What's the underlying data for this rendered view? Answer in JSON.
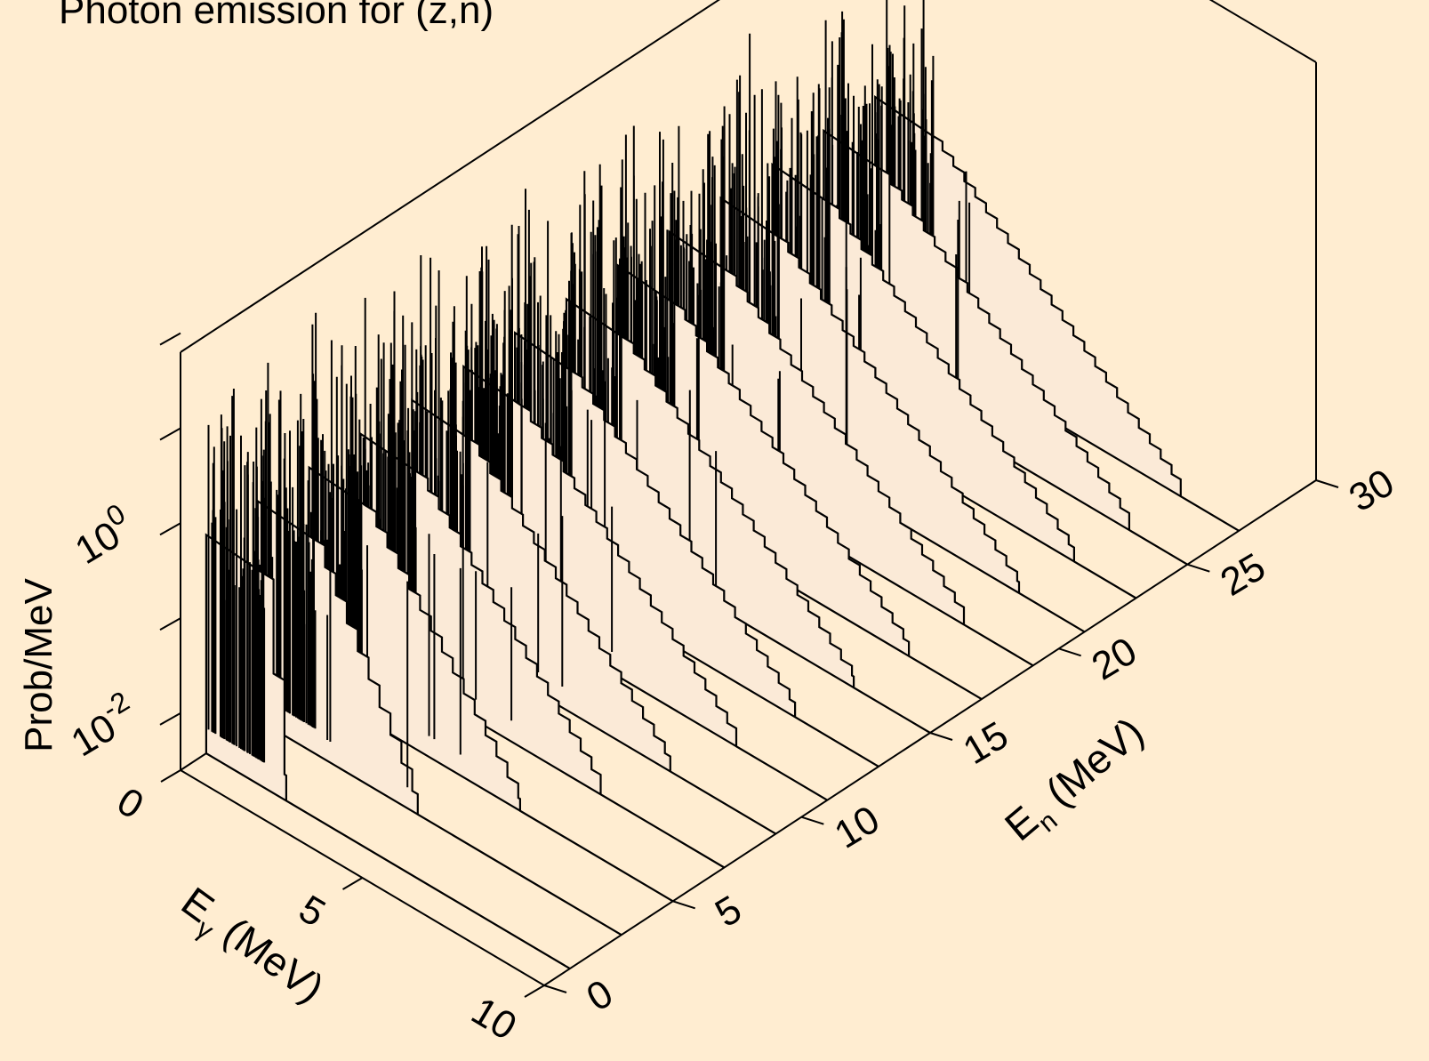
{
  "chart_data": {
    "type": "area",
    "title": "Photon emission for (z,n)",
    "xlabel_main": "E",
    "xlabel_sub": "γ",
    "xlabel_unit": " (MeV)",
    "ylabel_main": "E",
    "ylabel_sub": "n",
    "ylabel_unit": " (MeV)",
    "zlabel": "Prob/MeV",
    "x_axis": {
      "min": 0,
      "max": 10,
      "ticks": [
        "0",
        "5",
        "10"
      ]
    },
    "y_axis": {
      "min": 0,
      "max": 30,
      "ticks": [
        "0",
        "5",
        "10",
        "15",
        "20",
        "25",
        "30"
      ]
    },
    "z_axis": {
      "scale": "log",
      "ticks": [
        {
          "base": "10",
          "exp": "0"
        },
        {
          "base": "10",
          "exp": "-2"
        }
      ]
    },
    "grid": false,
    "legend": "none",
    "colors": {
      "background": "#FFEDD1",
      "fill": "#FBEAD7",
      "line": "#000000"
    },
    "series": [
      {
        "En": 1,
        "emax": 2.2
      },
      {
        "En": 3,
        "emax": 4.4
      },
      {
        "En": 5,
        "emax": 5.8
      },
      {
        "En": 7,
        "emax": 6.6
      },
      {
        "En": 9,
        "emax": 7.1
      },
      {
        "En": 11,
        "emax": 7.5
      },
      {
        "En": 13,
        "emax": 7.7
      },
      {
        "En": 15,
        "emax": 7.9
      },
      {
        "En": 17,
        "emax": 8.0
      },
      {
        "En": 19,
        "emax": 8.1
      },
      {
        "En": 21,
        "emax": 8.2
      },
      {
        "En": 23,
        "emax": 8.3
      },
      {
        "En": 25,
        "emax": 8.4
      },
      {
        "En": 27,
        "emax": 8.4
      }
    ]
  }
}
